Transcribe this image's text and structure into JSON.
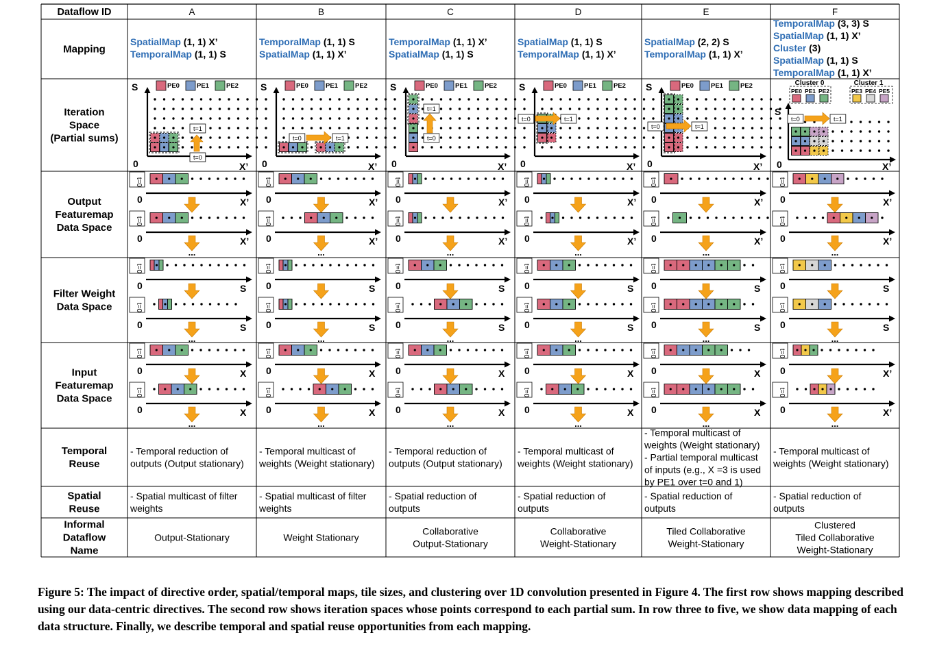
{
  "colors": {
    "pe0": "#d9697d",
    "pe1": "#7d9ccb",
    "pe2": "#75b583",
    "pe3": "#f2c849",
    "pe4": "#d6d6d6",
    "pe5": "#c7a4c6",
    "arrow": "#f5a21a",
    "map_keyword": "#2e6db4"
  },
  "header": {
    "row_label": "Dataflow ID",
    "ids": [
      "A",
      "B",
      "C",
      "D",
      "E",
      "F"
    ]
  },
  "row_labels": {
    "mapping": [
      "Mapping"
    ],
    "iteration": [
      "Iteration",
      "Space",
      "(Partial sums)"
    ],
    "output": [
      "Output",
      "Featuremap",
      "Data Space"
    ],
    "filter": [
      "Filter Weight",
      "Data Space"
    ],
    "input": [
      "Input",
      "Featuremap",
      "Data Space"
    ],
    "temporal": [
      "Temporal",
      "Reuse"
    ],
    "spatial": [
      "Spatial",
      "Reuse"
    ],
    "name": [
      "Informal",
      "Dataflow",
      "Name"
    ]
  },
  "mapping": [
    [
      {
        "kw": "SpatialMap",
        "rest": " (1, 1) X’"
      },
      {
        "kw": "TemporalMap",
        "rest": " (1, 1) S"
      }
    ],
    [
      {
        "kw": "TemporalMap",
        "rest": " (1, 1) S"
      },
      {
        "kw": "SpatialMap",
        "rest": " (1, 1) X’"
      }
    ],
    [
      {
        "kw": "TemporalMap",
        "rest": " (1, 1) X’"
      },
      {
        "kw": "SpatialMap",
        "rest": " (1, 1) S"
      }
    ],
    [
      {
        "kw": "SpatialMap",
        "rest": " (1, 1) S"
      },
      {
        "kw": "TemporalMap",
        "rest": " (1, 1) X’"
      }
    ],
    [
      {
        "kw": "SpatialMap",
        "rest": " (2, 2) S"
      },
      {
        "kw": "TemporalMap",
        "rest": " (1, 1) X’"
      }
    ],
    [
      {
        "kw": "TemporalMap",
        "rest": " (3, 3) S"
      },
      {
        "kw": "SpatialMap",
        "rest": " (1, 1) X’"
      },
      {
        "kw": "Cluster",
        "rest": " (3)"
      },
      {
        "kw": "SpatialMap",
        "rest": " (1, 1) S"
      },
      {
        "kw": "TemporalMap",
        "rest": " (1, 1) X’"
      }
    ]
  ],
  "iteration": {
    "axis_s": "S",
    "axis_x": "X’",
    "origin": "0",
    "legend": [
      "PE0",
      "PE1",
      "PE2"
    ],
    "legend_f": [
      "PE0",
      "PE1",
      "PE2",
      "PE3",
      "PE4",
      "PE5"
    ],
    "clusters": [
      "Cluster 0",
      "Cluster 1"
    ],
    "t0": "t=0",
    "t1": "t=1"
  },
  "dataspace": {
    "t_label": "t=0",
    "ellipsis": "...",
    "axis_x": "X’",
    "axis_s": "S",
    "axis_in": "X",
    "origin": "0"
  },
  "temporal_reuse": [
    [
      "- Temporal reduction of",
      "outputs (Output stationary)"
    ],
    [
      "- Temporal multicast of",
      "weights (Weight stationary)"
    ],
    [
      "- Temporal reduction of",
      "outputs (Output stationary)"
    ],
    [
      "- Temporal multicast of",
      "weights (Weight stationary)"
    ],
    [
      "- Temporal multicast of",
      "weights (Weight stationary)",
      "- Partial temporal multicast",
      "of inputs (e.g., X =3 is used",
      "by PE1 over t=0 and 1)"
    ],
    [
      "- Temporal multicast of",
      "weights (Weight stationary)"
    ]
  ],
  "spatial_reuse": [
    [
      "- Spatial multicast of filter",
      "weights"
    ],
    [
      "- Spatial multicast of filter",
      "weights"
    ],
    [
      "- Spatial reduction of",
      "outputs"
    ],
    [
      "- Spatial reduction of",
      "outputs"
    ],
    [
      "- Spatial reduction of",
      "outputs"
    ],
    [
      "- Spatial reduction of",
      "outputs"
    ]
  ],
  "dataflow_names": [
    [
      "Output-Stationary"
    ],
    [
      "Weight Stationary"
    ],
    [
      "Collaborative",
      "Output-Stationary"
    ],
    [
      "Collaborative",
      "Weight-Stationary"
    ],
    [
      "Tiled Collaborative",
      "Weight-Stationary"
    ],
    [
      "Clustered",
      "Tiled Collaborative",
      "Weight-Stationary"
    ]
  ],
  "caption": {
    "label": "Figure 5:",
    "text": " The impact of directive order, spatial/temporal maps, tile sizes, and clustering over 1D convolution presented in Figure 4. The first row shows mapping described using our data-centric directives. The second row shows iteration spaces whose points correspond to each partial sum. In row three to five, we show data mapping of each data structure. Finally, we describe temporal and spatial reuse opportunities from each mapping."
  }
}
